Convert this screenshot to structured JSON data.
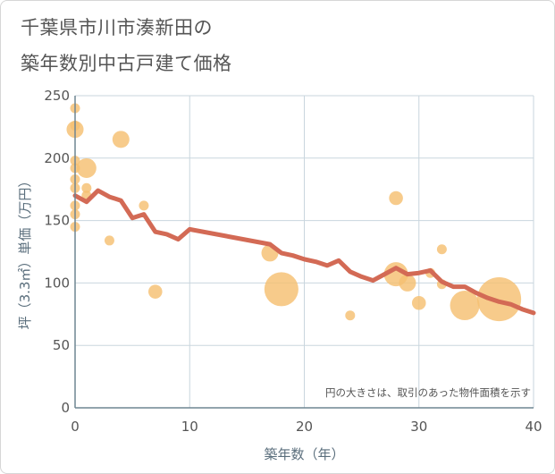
{
  "title_line1": "千葉県市川市湊新田の",
  "title_line2": "築年数別中古戸建て価格",
  "chart_data": {
    "type": "scatter",
    "xlabel": "築年数（年）",
    "ylabel": "坪（3.3㎡）単価（万円）",
    "xlim": [
      0,
      40
    ],
    "ylim": [
      0,
      250
    ],
    "x_ticks": [
      0,
      10,
      20,
      30,
      40
    ],
    "y_ticks": [
      0,
      50,
      100,
      150,
      200,
      250
    ],
    "grid": true,
    "note": "円の大きさは、取引のあった物件面積を示す",
    "bubble_color": "#f5c072",
    "line_color": "#d36a55",
    "bubbles": [
      {
        "x": 0,
        "y": 240,
        "size": 1
      },
      {
        "x": 0,
        "y": 226,
        "size": 1
      },
      {
        "x": 0,
        "y": 223,
        "size": 3
      },
      {
        "x": 0,
        "y": 198,
        "size": 1
      },
      {
        "x": 0,
        "y": 192,
        "size": 1
      },
      {
        "x": 0,
        "y": 183,
        "size": 1
      },
      {
        "x": 0,
        "y": 176,
        "size": 1
      },
      {
        "x": 0,
        "y": 162,
        "size": 1
      },
      {
        "x": 0,
        "y": 155,
        "size": 1
      },
      {
        "x": 0,
        "y": 145,
        "size": 1
      },
      {
        "x": 1,
        "y": 192,
        "size": 4
      },
      {
        "x": 1,
        "y": 176,
        "size": 1
      },
      {
        "x": 1,
        "y": 170,
        "size": 1
      },
      {
        "x": 3,
        "y": 134,
        "size": 1
      },
      {
        "x": 4,
        "y": 215,
        "size": 3
      },
      {
        "x": 6,
        "y": 162,
        "size": 1
      },
      {
        "x": 7,
        "y": 93,
        "size": 2
      },
      {
        "x": 17,
        "y": 124,
        "size": 3
      },
      {
        "x": 18,
        "y": 95,
        "size": 12
      },
      {
        "x": 24,
        "y": 74,
        "size": 1
      },
      {
        "x": 28,
        "y": 168,
        "size": 2
      },
      {
        "x": 28,
        "y": 107,
        "size": 6
      },
      {
        "x": 29,
        "y": 100,
        "size": 3
      },
      {
        "x": 30,
        "y": 84,
        "size": 2
      },
      {
        "x": 31,
        "y": 108,
        "size": 1
      },
      {
        "x": 32,
        "y": 127,
        "size": 1
      },
      {
        "x": 32,
        "y": 99,
        "size": 1
      },
      {
        "x": 34,
        "y": 82,
        "size": 9
      },
      {
        "x": 37,
        "y": 87,
        "size": 20
      }
    ],
    "trend_line": {
      "x": [
        0,
        1,
        2,
        3,
        4,
        5,
        6,
        7,
        8,
        9,
        10,
        17,
        18,
        19,
        20,
        21,
        22,
        23,
        24,
        25,
        26,
        27,
        28,
        29,
        30,
        31,
        32,
        33,
        34,
        35,
        36,
        37,
        38,
        39,
        40
      ],
      "y": [
        170,
        165,
        174,
        169,
        166,
        152,
        155,
        141,
        139,
        135,
        143,
        131,
        124,
        122,
        119,
        117,
        114,
        118,
        109,
        105,
        102,
        107,
        112,
        107,
        108,
        110,
        101,
        97,
        97,
        92,
        88,
        85,
        83,
        79,
        76
      ]
    }
  }
}
